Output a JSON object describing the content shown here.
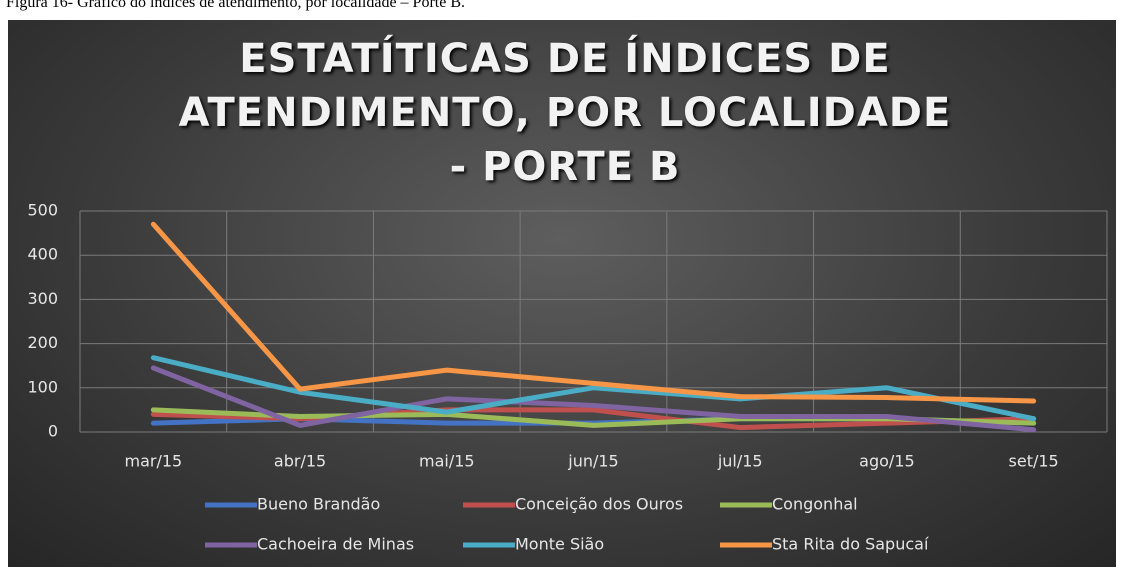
{
  "caption": "Figura 16- Gráfico do índices de atendimento, por localidade – Porte B.",
  "chart_data": {
    "type": "line",
    "title": "ESTATÍTICAS DE ÍNDICES DE ATENDIMENTO, POR LOCALIDADE - PORTE B",
    "categories": [
      "mar/15",
      "abr/15",
      "mai/15",
      "jun/15",
      "jul/15",
      "ago/15",
      "set/15"
    ],
    "series": [
      {
        "name": "Bueno Brandão",
        "color": "#4472c4",
        "values": [
          20,
          30,
          20,
          20,
          30,
          30,
          20
        ]
      },
      {
        "name": "Conceição dos Ouros",
        "color": "#c0504d",
        "values": [
          40,
          30,
          50,
          50,
          10,
          20,
          30
        ]
      },
      {
        "name": "Congonhal",
        "color": "#9bbb59",
        "values": [
          50,
          35,
          40,
          15,
          30,
          30,
          20
        ]
      },
      {
        "name": "Cachoeira de Minas",
        "color": "#8064a2",
        "values": [
          145,
          15,
          75,
          60,
          35,
          35,
          5
        ]
      },
      {
        "name": "Monte Sião",
        "color": "#4bacc6",
        "values": [
          168,
          90,
          45,
          100,
          75,
          100,
          30
        ]
      },
      {
        "name": "Sta Rita do Sapucaí",
        "color": "#f79646",
        "values": [
          470,
          97,
          140,
          110,
          80,
          78,
          70
        ]
      }
    ],
    "ylim": [
      0,
      500
    ],
    "yticks": [
      0,
      100,
      200,
      300,
      400,
      500
    ],
    "grid": true
  }
}
